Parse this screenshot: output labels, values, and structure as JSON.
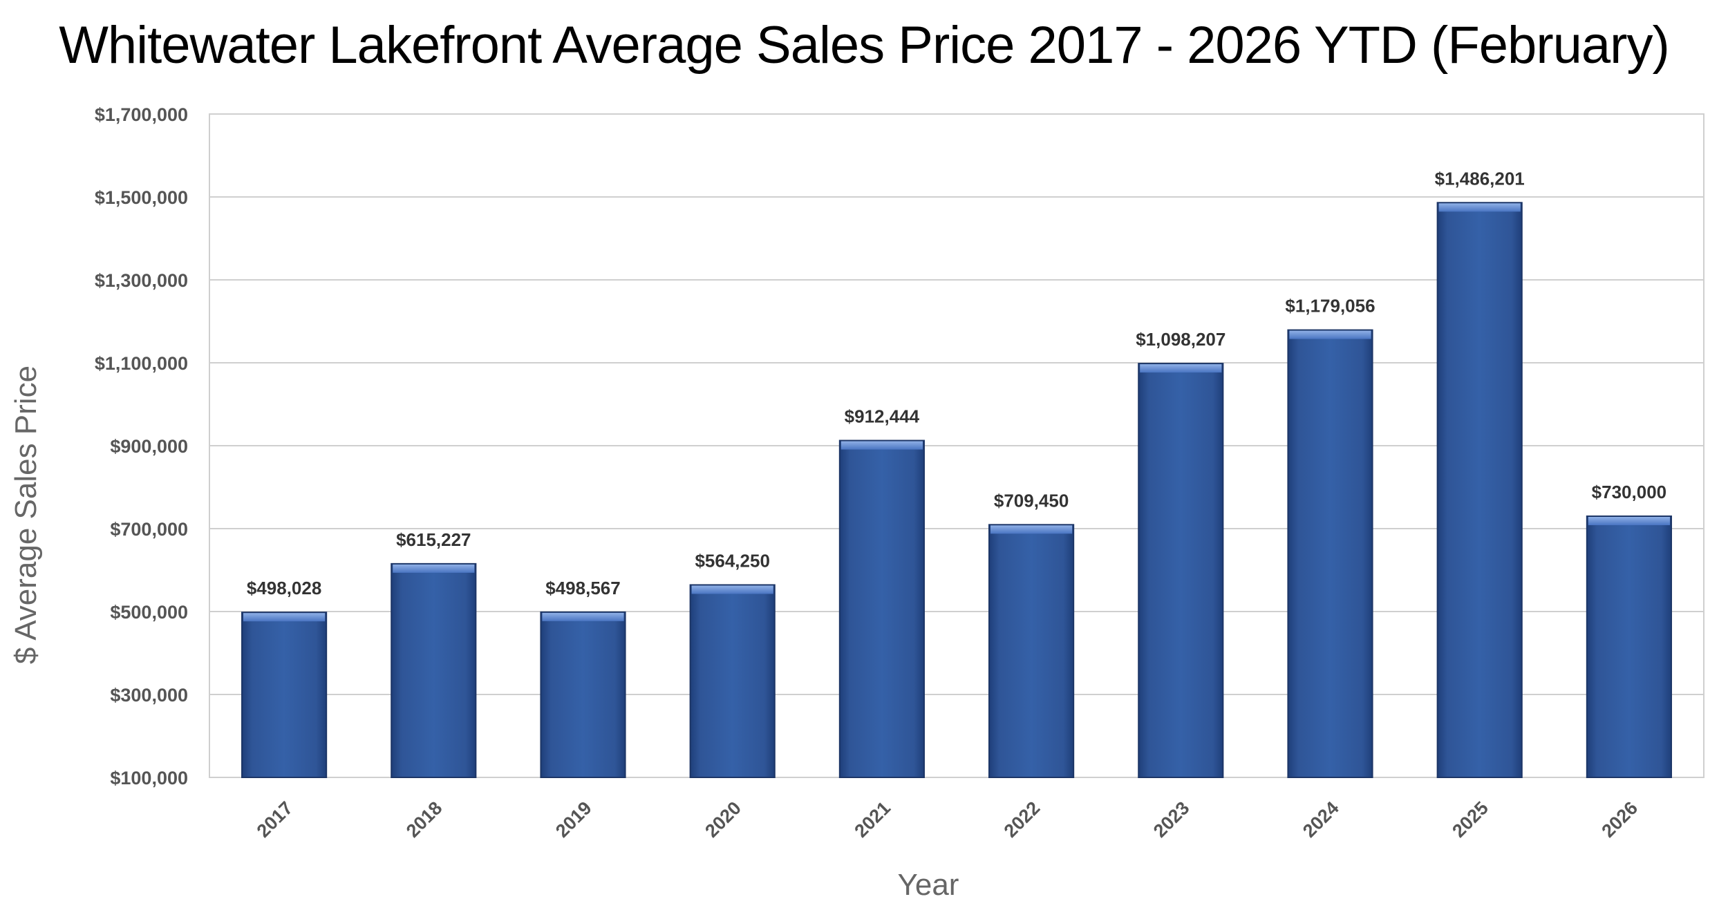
{
  "chart_data": {
    "type": "bar",
    "title": "Whitewater Lakefront Average Sales Price 2017 - 2026 YTD (February)",
    "xlabel": "Year",
    "ylabel": "$ Average Sales Price",
    "categories": [
      "2017",
      "2018",
      "2019",
      "2020",
      "2021",
      "2022",
      "2023",
      "2024",
      "2025",
      "2026"
    ],
    "values": [
      498028,
      615227,
      498567,
      564250,
      912444,
      709450,
      1098207,
      1179056,
      1486201,
      730000
    ],
    "data_labels": [
      "$498,028",
      "$615,227",
      "$498,567",
      "$564,250",
      "$912,444",
      "$709,450",
      "$1,098,207",
      "$1,179,056",
      "$1,486,201",
      "$730,000"
    ],
    "ylim": [
      100000,
      1700000
    ],
    "yticks": [
      100000,
      300000,
      500000,
      700000,
      900000,
      1100000,
      1300000,
      1500000,
      1700000
    ],
    "ytick_labels": [
      "$100,000",
      "$300,000",
      "$500,000",
      "$700,000",
      "$900,000",
      "$1,100,000",
      "$1,300,000",
      "$1,500,000",
      "$1,700,000"
    ],
    "grid": true,
    "legend": "none",
    "bar_color": "#2F5597"
  }
}
